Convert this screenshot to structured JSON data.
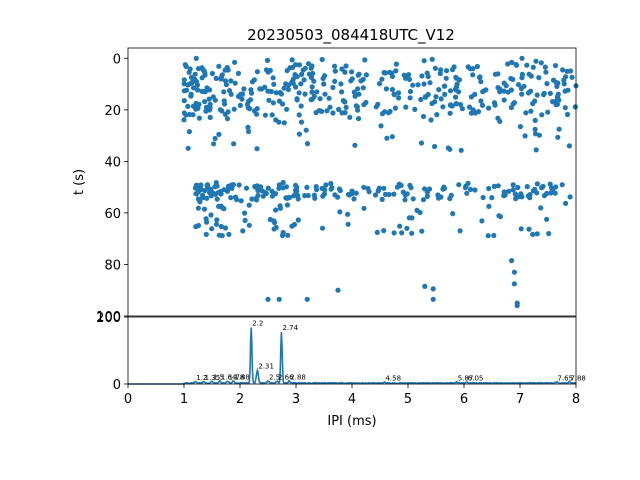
{
  "chart_data": [
    {
      "type": "scatter",
      "title": "20230503_084418UTC_V12",
      "xlabel": "",
      "ylabel": "t (s)",
      "xlim": [
        0,
        8
      ],
      "ylim": [
        100,
        -4
      ],
      "y_inverted": true,
      "yticks": [
        0,
        20,
        40,
        60,
        80,
        100
      ],
      "ytick_labels": [
        "0",
        "20",
        "40",
        "60",
        "80",
        "100"
      ],
      "marker_color": "#1f77b4",
      "grid": false,
      "points_sample": [
        {
          "x": 2.5,
          "y": 93.5
        },
        {
          "x": 2.7,
          "y": 93.5
        },
        {
          "x": 3.2,
          "y": 93.5
        },
        {
          "x": 3.75,
          "y": 90
        },
        {
          "x": 5.3,
          "y": 88.5
        },
        {
          "x": 5.45,
          "y": 89.5
        },
        {
          "x": 5.45,
          "y": 93.5
        },
        {
          "x": 6.85,
          "y": 78.5
        },
        {
          "x": 6.9,
          "y": 83
        },
        {
          "x": 6.9,
          "y": 87.5
        },
        {
          "x": 6.95,
          "y": 95
        },
        {
          "x": 6.95,
          "y": 96
        }
      ],
      "point_clusters": [
        {
          "t_range": [
            0,
            36
          ],
          "ipi_range": [
            1.0,
            8.0
          ],
          "density": "high"
        },
        {
          "t_range": [
            48,
            69
          ],
          "ipi_range": [
            1.2,
            8.0
          ],
          "density": "high"
        }
      ]
    },
    {
      "type": "line",
      "xlabel": "IPI (ms)",
      "ylabel": "",
      "xlim": [
        0,
        8
      ],
      "ylim": [
        0,
        200
      ],
      "xticks": [
        0,
        1,
        2,
        3,
        4,
        5,
        6,
        7,
        8
      ],
      "xtick_labels": [
        "0",
        "1",
        "2",
        "3",
        "4",
        "5",
        "6",
        "7",
        "8"
      ],
      "yticks": [
        0,
        200
      ],
      "ytick_labels": [
        "0",
        "200"
      ],
      "line_color": "#1f77b4",
      "peaks": [
        {
          "x": 2.2,
          "y": 168,
          "label": "2.2"
        },
        {
          "x": 2.74,
          "y": 155,
          "label": "2.74"
        },
        {
          "x": 2.31,
          "y": 40,
          "label": "2.31"
        },
        {
          "x": 1.2,
          "y": 6,
          "label": "1.2"
        },
        {
          "x": 1.35,
          "y": 6,
          "label": "1.35"
        },
        {
          "x": 1.5,
          "y": 7,
          "label": "1.5"
        },
        {
          "x": 1.64,
          "y": 8,
          "label": "1.64"
        },
        {
          "x": 1.78,
          "y": 8,
          "label": "1.78"
        },
        {
          "x": 1.88,
          "y": 8,
          "label": "1.88"
        },
        {
          "x": 2.5,
          "y": 8,
          "label": "2.5"
        },
        {
          "x": 2.66,
          "y": 8,
          "label": "2.66"
        },
        {
          "x": 2.88,
          "y": 8,
          "label": "2.88"
        },
        {
          "x": 4.58,
          "y": 5,
          "label": "4.58"
        },
        {
          "x": 5.87,
          "y": 5,
          "label": "5.87"
        },
        {
          "x": 6.05,
          "y": 5,
          "label": "6.05"
        },
        {
          "x": 7.65,
          "y": 5,
          "label": "7.65"
        },
        {
          "x": 7.88,
          "y": 5,
          "label": "7.88"
        }
      ]
    }
  ]
}
